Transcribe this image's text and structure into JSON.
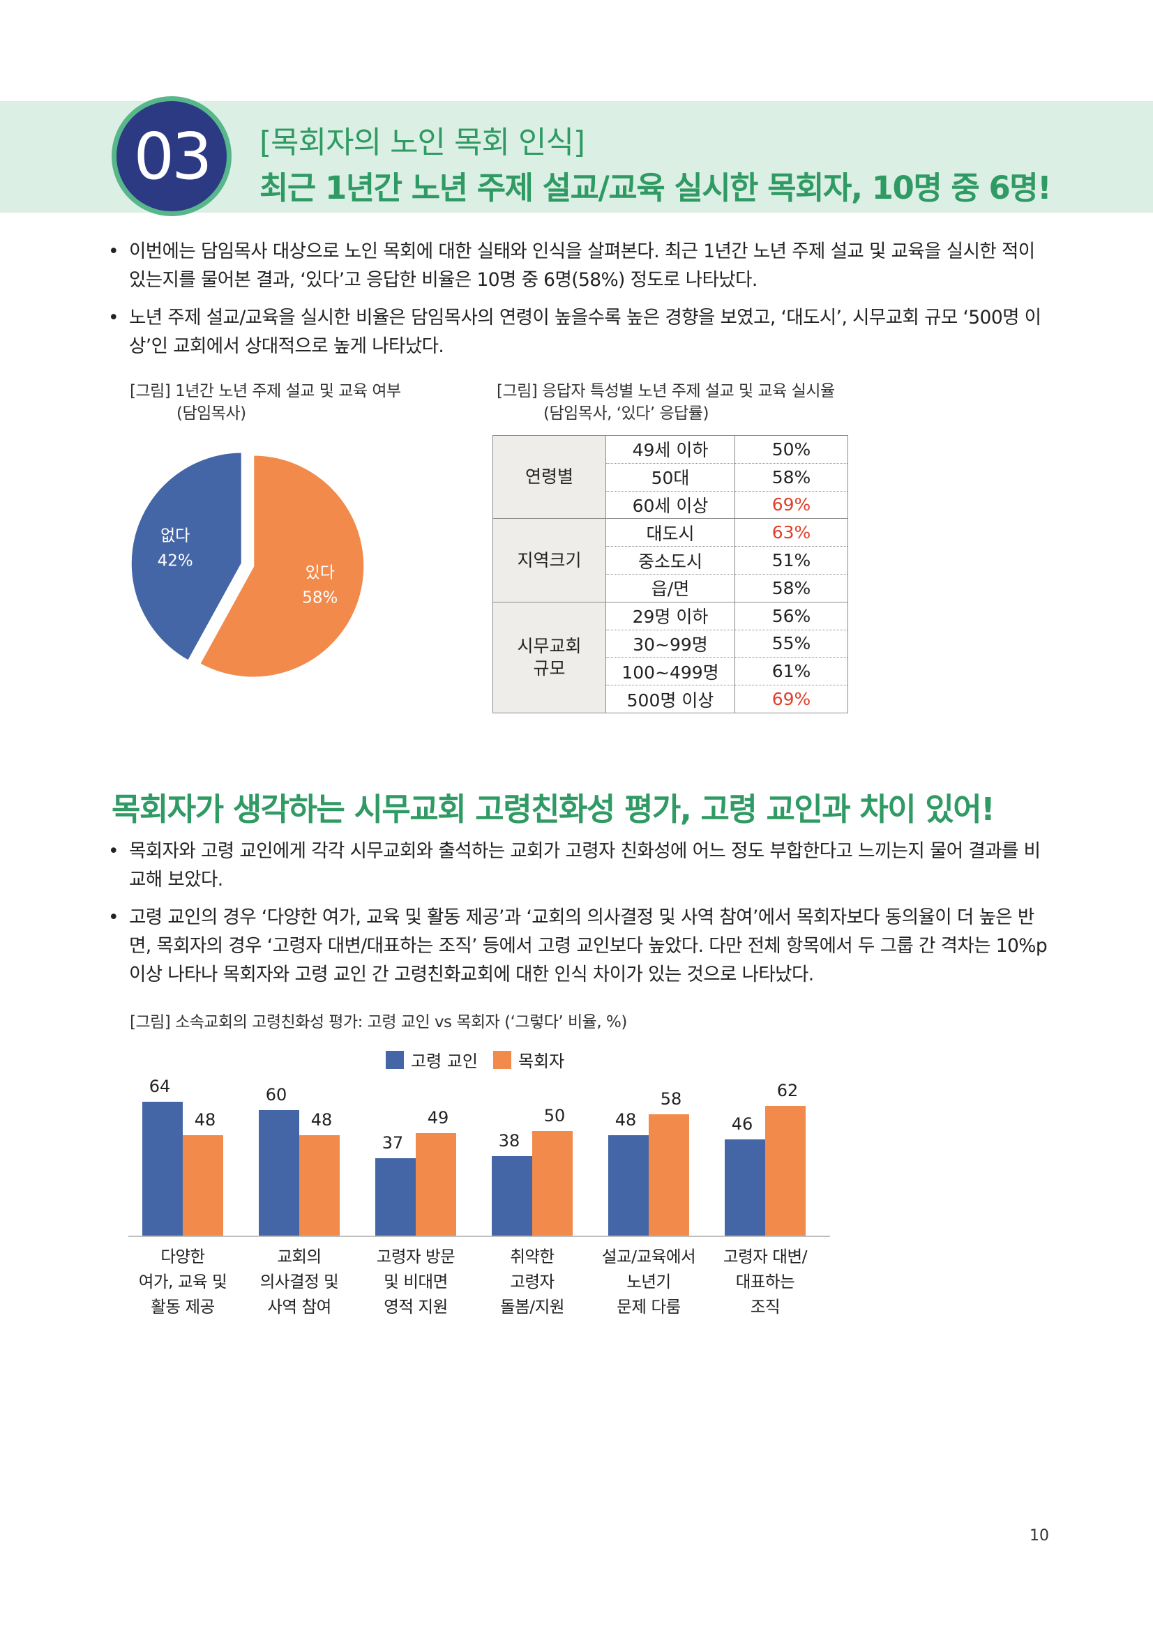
{
  "header": {
    "number": "03",
    "kicker": "[목회자의 노인 목회 인식]",
    "title": "최근 1년간 노년 주제 설교/교육 실시한 목회자, 10명 중 6명!"
  },
  "section1": {
    "bullets": [
      "이번에는 담임목사 대상으로 노인 목회에 대한 실태와 인식을 살펴본다. 최근 1년간 노년 주제 설교 및 교육을 실시한 적이 있는지를 물어본 결과, ‘있다’고 응답한 비율은 10명 중 6명(58%) 정도로 나타났다.",
      "노년 주제 설교/교육을 실시한 비율은 담임목사의 연령이 높을수록 높은 경향을 보였고, ‘대도시’, 시무교회 규모 ‘500명 이상’인 교회에서 상대적으로 높게 나타났다."
    ],
    "pie_caption_line1": "[그림] 1년간 노년 주제 설교 및 교육 여부",
    "pie_caption_line2": "(담임목사)",
    "table_caption_line1": "[그림] 응답자 특성별 노년 주제 설교 및 교육 실시율",
    "table_caption_line2": "(담임목사, ‘있다’ 응답률)"
  },
  "section2": {
    "title": "목회자가 생각하는 시무교회 고령친화성 평가, 고령 교인과 차이 있어!",
    "bullets": [
      "목회자와 고령 교인에게 각각 시무교회와 출석하는 교회가 고령자 친화성에 어느 정도 부합한다고 느끼는지 물어 결과를 비교해 보았다.",
      "고령 교인의 경우 ‘다양한 여가, 교육 및 활동 제공’과 ‘교회의 의사결정 및 사역 참여’에서 목회자보다 동의율이 더 높은 반면, 목회자의 경우 ‘고령자 대변/대표하는 조직’ 등에서 고령 교인보다 높았다. 다만 전체 항목에서 두 그룹 간 격차는 10%p 이상 나타나 목회자와 고령 교인 간 고령친화교회에 대한 인식 차이가 있는 것으로 나타났다."
    ],
    "bar_caption": "[그림] 소속교회의 고령친화성 평가: 고령 교인 vs 목회자 (‘그렇다’ 비율, %)"
  },
  "page_number": "10",
  "colors": {
    "blue": "#4466a6",
    "orange": "#f18a4a",
    "green": "#2f9a63",
    "highlight": "#e0402a"
  },
  "chart_data": [
    {
      "type": "pie",
      "slices": [
        {
          "label": "없다",
          "value": 42,
          "value_label": "42%",
          "color": "#4466a6"
        },
        {
          "label": "있다",
          "value": 58,
          "value_label": "58%",
          "color": "#f18a4a"
        }
      ]
    },
    {
      "type": "table",
      "rows": [
        {
          "group": "연령별",
          "category": "49세 이하",
          "value": "50%",
          "highlight": false
        },
        {
          "group": "연령별",
          "category": "50대",
          "value": "58%",
          "highlight": false
        },
        {
          "group": "연령별",
          "category": "60세 이상",
          "value": "69%",
          "highlight": true
        },
        {
          "group": "지역크기",
          "category": "대도시",
          "value": "63%",
          "highlight": true
        },
        {
          "group": "지역크기",
          "category": "중소도시",
          "value": "51%",
          "highlight": false
        },
        {
          "group": "지역크기",
          "category": "읍/면",
          "value": "58%",
          "highlight": false
        },
        {
          "group": "시무교회 규모",
          "category": "29명 이하",
          "value": "56%",
          "highlight": false
        },
        {
          "group": "시무교회 규모",
          "category": "30~99명",
          "value": "55%",
          "highlight": false
        },
        {
          "group": "시무교회 규모",
          "category": "100~499명",
          "value": "61%",
          "highlight": false
        },
        {
          "group": "시무교회 규모",
          "category": "500명 이상",
          "value": "69%",
          "highlight": true
        }
      ]
    },
    {
      "type": "bar",
      "categories": [
        [
          "다양한",
          "여가, 교육 및",
          "활동 제공"
        ],
        [
          "교회의",
          "의사결정 및",
          "사역 참여"
        ],
        [
          "고령자 방문",
          "및 비대면",
          "영적 지원"
        ],
        [
          "취약한",
          "고령자",
          "돌봄/지원"
        ],
        [
          "설교/교육에서",
          "노년기",
          "문제 다룸"
        ],
        [
          "고령자 대변/",
          "대표하는",
          "조직"
        ]
      ],
      "series": [
        {
          "name": "고령 교인",
          "color": "#4466a6",
          "values": [
            64,
            60,
            37,
            38,
            48,
            46
          ]
        },
        {
          "name": "목회자",
          "color": "#f18a4a",
          "values": [
            48,
            48,
            49,
            50,
            58,
            62
          ]
        }
      ],
      "ylim": [
        0,
        70
      ],
      "legend": "top-center"
    }
  ]
}
